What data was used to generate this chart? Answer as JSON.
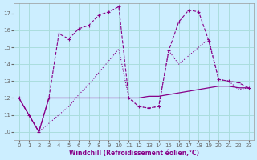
{
  "xlabel": "Windchill (Refroidissement éolien,°C)",
  "bg_color": "#cceeff",
  "grid_color": "#aadddd",
  "line_color": "#880088",
  "xlim": [
    -0.5,
    23.5
  ],
  "ylim": [
    9.5,
    17.6
  ],
  "xticks": [
    0,
    1,
    2,
    3,
    4,
    5,
    6,
    7,
    8,
    9,
    10,
    11,
    12,
    13,
    14,
    15,
    16,
    17,
    18,
    19,
    20,
    21,
    22,
    23
  ],
  "yticks": [
    10,
    11,
    12,
    13,
    14,
    15,
    16,
    17
  ],
  "series1_x": [
    0,
    1,
    2,
    3,
    4,
    5,
    6,
    7,
    8,
    9,
    10,
    11,
    12,
    13,
    14,
    15,
    16,
    17,
    18,
    19,
    20,
    21,
    22,
    23
  ],
  "series1_y": [
    12.0,
    11.0,
    10.0,
    12.0,
    15.8,
    15.5,
    16.1,
    16.3,
    16.9,
    17.1,
    17.4,
    12.0,
    11.5,
    11.4,
    11.5,
    14.8,
    16.5,
    17.2,
    17.1,
    15.4,
    13.1,
    13.0,
    12.9,
    12.6
  ],
  "series2_x": [
    0,
    1,
    2,
    3,
    4,
    5,
    6,
    7,
    8,
    9,
    10,
    11,
    12,
    13,
    14,
    15,
    16,
    17,
    18,
    19,
    20,
    21,
    22,
    23
  ],
  "series2_y": [
    12.0,
    11.0,
    10.0,
    12.0,
    12.0,
    12.0,
    12.0,
    12.0,
    12.0,
    12.0,
    12.0,
    12.0,
    12.0,
    12.1,
    12.1,
    12.2,
    12.3,
    12.4,
    12.5,
    12.6,
    12.7,
    12.7,
    12.6,
    12.6
  ],
  "series3_x": [
    0,
    1,
    2,
    3,
    4,
    5,
    6,
    7,
    8,
    9,
    10,
    11,
    12,
    13,
    14,
    15,
    16,
    17,
    18,
    19,
    20,
    21,
    22,
    23
  ],
  "series3_y": [
    12.0,
    11.0,
    10.0,
    10.5,
    11.0,
    11.5,
    12.2,
    12.8,
    13.5,
    14.2,
    14.9,
    12.0,
    11.5,
    11.4,
    11.5,
    14.8,
    14.0,
    14.5,
    15.0,
    15.5,
    13.1,
    13.0,
    12.5,
    12.6
  ]
}
